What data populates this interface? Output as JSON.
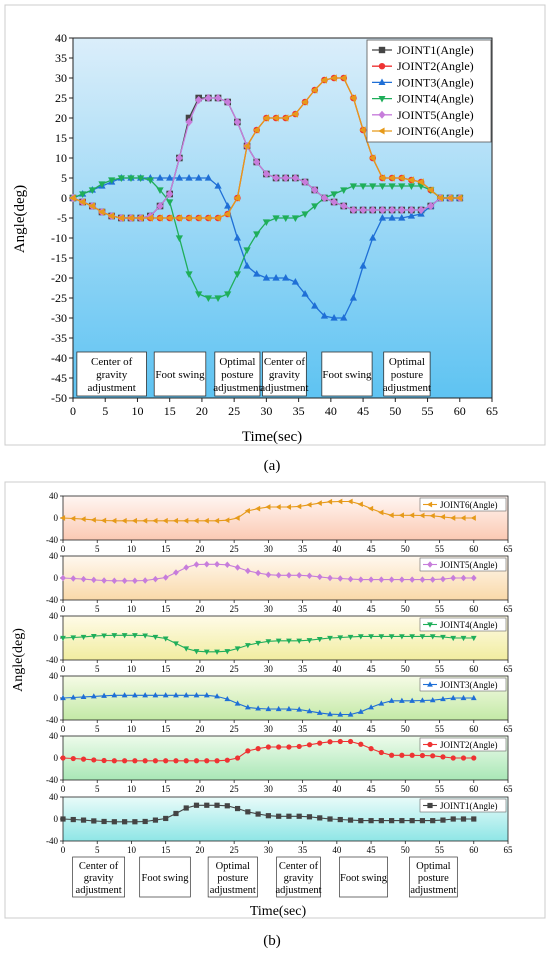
{
  "panel_a": {
    "caption": "(a)",
    "xlabel": "Time(sec)",
    "ylabel": "Angle(deg)",
    "x_ticks": [
      0,
      5,
      10,
      15,
      20,
      25,
      30,
      35,
      40,
      45,
      50,
      55,
      60,
      65
    ],
    "y_ticks": [
      -50,
      -45,
      -40,
      -35,
      -30,
      -25,
      -20,
      -15,
      -10,
      -5,
      0,
      5,
      10,
      15,
      20,
      25,
      30,
      35,
      40
    ],
    "phase_labels": [
      {
        "lines": [
          "Center of",
          "gravity",
          "adjustment"
        ],
        "x0": 0.6,
        "x1": 11.4
      },
      {
        "lines": [
          "Foot swing"
        ],
        "x0": 12.6,
        "x1": 20.6
      },
      {
        "lines": [
          "Optimal",
          "posture",
          "adjustment"
        ],
        "x0": 22.0,
        "x1": 29.0
      },
      {
        "lines": [
          "Center of",
          "gravity",
          "adjustment"
        ],
        "x0": 29.4,
        "x1": 36.2
      },
      {
        "lines": [
          "Foot swing"
        ],
        "x0": 38.6,
        "x1": 46.4
      },
      {
        "lines": [
          "Optimal",
          "posture",
          "adjustment"
        ],
        "x0": 48.2,
        "x1": 55.4
      }
    ]
  },
  "panel_b": {
    "caption": "(b)",
    "xlabel": "Time(sec)",
    "ylabel": "Angle(deg)",
    "x_ticks": [
      0,
      5,
      10,
      15,
      20,
      25,
      30,
      35,
      40,
      45,
      50,
      55,
      60,
      65
    ],
    "y_ticks": [
      -40,
      0,
      40
    ],
    "phase_labels": [
      {
        "lines": [
          "Center of",
          "gravity",
          "adjustment"
        ],
        "x0": 1.4,
        "x1": 9.0
      },
      {
        "lines": [
          "Foot swing"
        ],
        "x0": 11.2,
        "x1": 18.6
      },
      {
        "lines": [
          "Optimal",
          "posture",
          "adjustment"
        ],
        "x0": 21.2,
        "x1": 28.4
      },
      {
        "lines": [
          "Center of",
          "gravity",
          "adjustment"
        ],
        "x0": 31.2,
        "x1": 37.6
      },
      {
        "lines": [
          "Foot swing"
        ],
        "x0": 40.4,
        "x1": 47.4
      },
      {
        "lines": [
          "Optimal",
          "posture",
          "adjustment"
        ],
        "x0": 50.6,
        "x1": 57.6
      }
    ]
  },
  "chart_data": {
    "type": "line",
    "xlabel": "Time(sec)",
    "ylabel": "Angle(deg)",
    "xlim": [
      0,
      65
    ],
    "ylim": [
      -50,
      40
    ],
    "legend_position": "top-right",
    "x": [
      0,
      1.5,
      3,
      4.5,
      6,
      7.5,
      9,
      10.5,
      12,
      13.5,
      15,
      16.5,
      18,
      19.5,
      21,
      22.5,
      24,
      25.5,
      27,
      28.5,
      30,
      31.5,
      33,
      34.5,
      36,
      37.5,
      39,
      40.5,
      42,
      43.5,
      45,
      46.5,
      48,
      49.5,
      51,
      52.5,
      54,
      55.5,
      57,
      58.5,
      60
    ],
    "series": [
      {
        "name": "JOINT1(Angle)",
        "color": "#444444",
        "marker": "square",
        "values": [
          0,
          -1,
          -2,
          -3.5,
          -4.5,
          -5,
          -5,
          -5,
          -4.5,
          -2,
          1,
          10,
          20,
          25,
          25,
          25,
          24,
          19,
          13,
          9,
          6,
          5,
          5,
          5,
          4,
          2,
          0,
          -1,
          -2,
          -3,
          -3,
          -3,
          -3,
          -3,
          -3,
          -3,
          -3,
          -2,
          0,
          0,
          0
        ]
      },
      {
        "name": "JOINT2(Angle)",
        "color": "#ee3333",
        "marker": "circle",
        "values": [
          0,
          -1,
          -2,
          -3.5,
          -4.5,
          -5,
          -5,
          -5,
          -5,
          -5,
          -5,
          -5,
          -5,
          -5,
          -5,
          -5,
          -4,
          0,
          13,
          17,
          20,
          20,
          20,
          21,
          24,
          27,
          29.5,
          30,
          30,
          25,
          17,
          10,
          5,
          5,
          5,
          4.5,
          4,
          2,
          0,
          0,
          0
        ]
      },
      {
        "name": "JOINT3(Angle)",
        "color": "#1f6fd6",
        "marker": "triangle-up",
        "values": [
          0,
          1,
          2,
          3,
          4,
          5,
          5,
          5,
          5,
          5,
          5,
          5,
          5,
          5,
          5,
          3,
          -2,
          -10,
          -17,
          -19,
          -20,
          -20,
          -20,
          -21,
          -24,
          -27,
          -29.5,
          -30,
          -30,
          -25,
          -17,
          -10,
          -5,
          -5,
          -5,
          -4.5,
          -4,
          -2,
          0,
          0,
          0
        ]
      },
      {
        "name": "JOINT4(Angle)",
        "color": "#1fae5a",
        "marker": "triangle-down",
        "values": [
          0,
          1,
          2,
          3.5,
          4.5,
          5,
          5,
          5,
          4.5,
          2,
          -1,
          -10,
          -19,
          -24,
          -25,
          -25,
          -24,
          -19,
          -13,
          -9,
          -6,
          -5,
          -5,
          -5,
          -4,
          -2,
          0,
          1,
          2,
          3,
          3,
          3,
          3,
          3,
          3,
          3,
          3,
          2,
          0,
          0,
          0
        ]
      },
      {
        "name": "JOINT5(Angle)",
        "color": "#c77ddb",
        "marker": "diamond",
        "values": [
          0,
          -1,
          -2,
          -3.5,
          -4.5,
          -5,
          -5,
          -5,
          -4.5,
          -2,
          1,
          10,
          19,
          24.5,
          25,
          25,
          24,
          19,
          13,
          9,
          6,
          5,
          5,
          5,
          4,
          2,
          0,
          -1,
          -2,
          -3,
          -3,
          -3,
          -3,
          -3,
          -3,
          -3,
          -3,
          -2,
          0,
          0,
          0
        ]
      },
      {
        "name": "JOINT6(Angle)",
        "color": "#e69a1a",
        "marker": "triangle-left",
        "values": [
          0,
          -1,
          -2,
          -3.5,
          -4.5,
          -5,
          -5,
          -5,
          -5,
          -5,
          -5,
          -5,
          -5,
          -5,
          -5,
          -5,
          -4,
          0,
          13,
          17,
          20,
          20,
          20,
          21,
          24,
          27,
          29.5,
          30,
          30,
          25,
          17,
          10,
          5,
          5,
          5,
          4.5,
          4,
          2,
          0,
          0,
          0
        ]
      }
    ]
  }
}
